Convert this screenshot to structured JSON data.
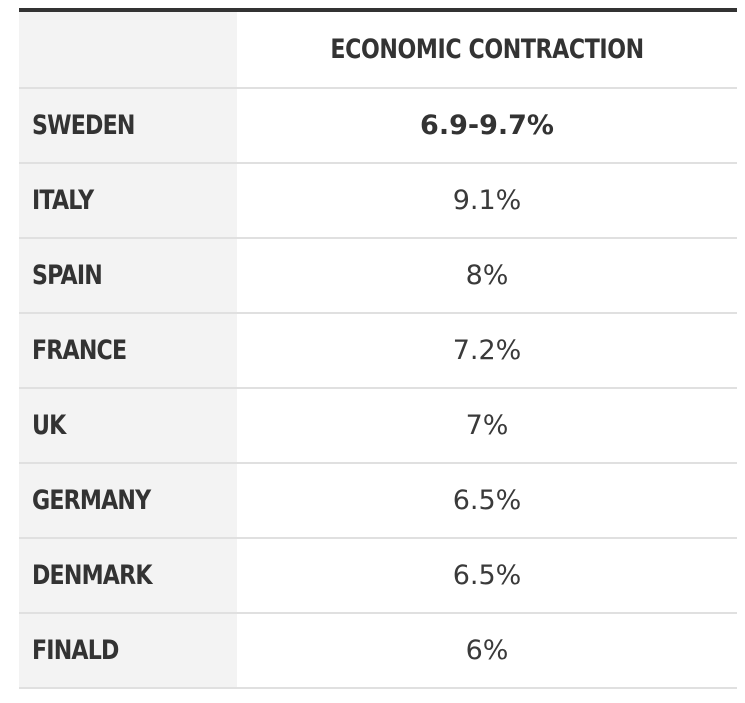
{
  "chart_data": {
    "type": "table",
    "columns": [
      "",
      "ECONOMIC CONTRACTION"
    ],
    "rows": [
      {
        "country": "SWEDEN",
        "value": "6.9-9.7%",
        "highlight": true
      },
      {
        "country": "ITALY",
        "value": "9.1%",
        "highlight": false
      },
      {
        "country": "SPAIN",
        "value": "8%",
        "highlight": false
      },
      {
        "country": "FRANCE",
        "value": "7.2%",
        "highlight": false
      },
      {
        "country": "UK",
        "value": "7%",
        "highlight": false
      },
      {
        "country": "GERMANY",
        "value": "6.5%",
        "highlight": false
      },
      {
        "country": "DENMARK",
        "value": "6.5%",
        "highlight": false
      },
      {
        "country": "FINALD",
        "value": "6%",
        "highlight": false
      }
    ]
  },
  "colors": {
    "rule": "#333333",
    "label_bg": "#f3f3f3",
    "divider": "#e0e0e0",
    "text": "#333333"
  }
}
